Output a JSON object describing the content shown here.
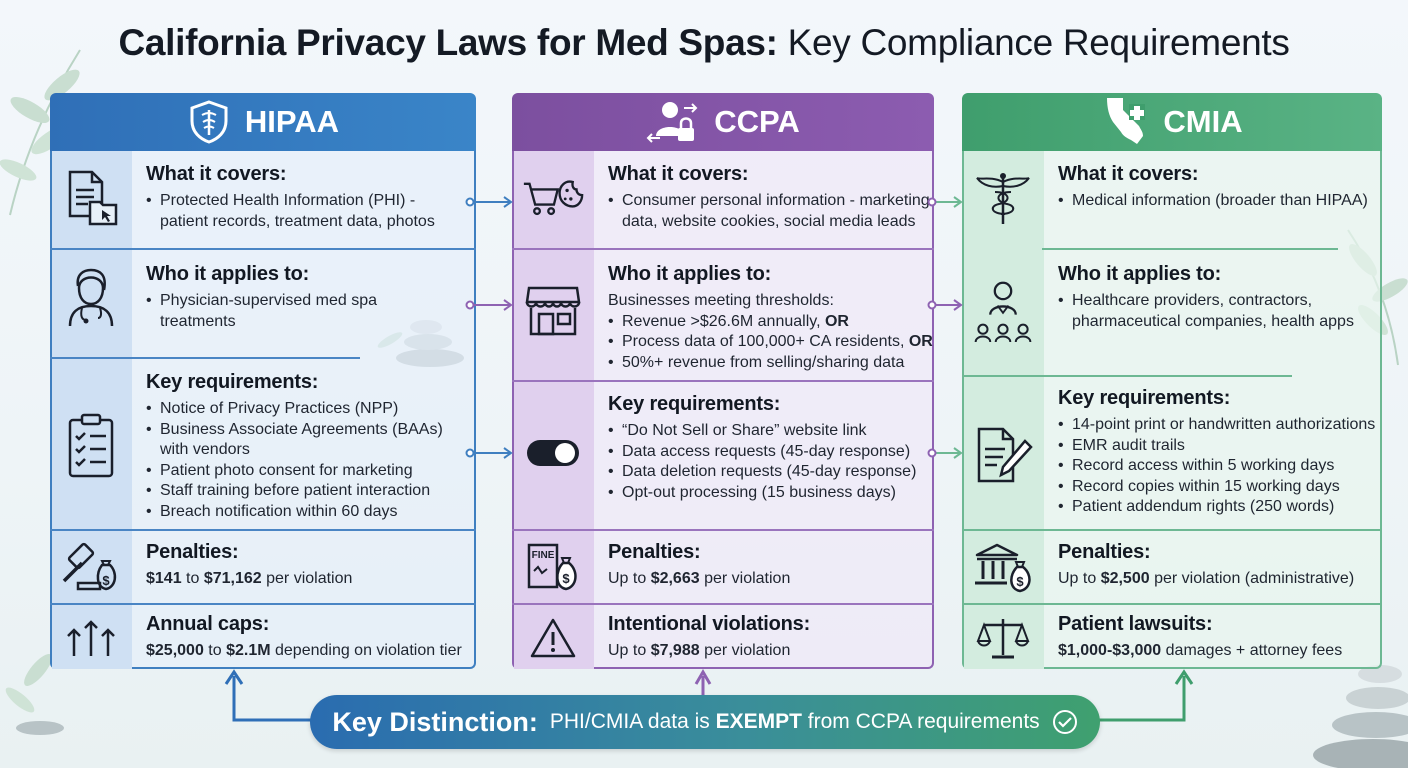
{
  "title": {
    "bold": "California Privacy Laws for Med Spas:",
    "light": "Key Compliance Requirements"
  },
  "columns": {
    "hipaa": {
      "name": "HIPAA",
      "sections": [
        {
          "icon": "document-folder-icon",
          "title": "What it covers:",
          "lines": [
            {
              "type": "bullet",
              "text": "Protected Health Information (PHI) -"
            },
            {
              "type": "cont",
              "text": "patient records, treatment data, photos"
            }
          ]
        },
        {
          "icon": "doctor-icon",
          "title": "Who it applies to:",
          "lines": [
            {
              "type": "bullet",
              "text": "Physician-supervised med spa"
            },
            {
              "type": "cont",
              "text": "treatments"
            }
          ]
        },
        {
          "icon": "checklist-icon",
          "title": "Key requirements:",
          "lines": [
            {
              "type": "bullet",
              "text": "Notice of Privacy Practices (NPP)"
            },
            {
              "type": "bullet",
              "text": "Business Associate Agreements (BAAs)"
            },
            {
              "type": "cont",
              "text": "with vendors"
            },
            {
              "type": "bullet",
              "text": "Patient photo consent for marketing"
            },
            {
              "type": "bullet",
              "text": "Staff training before patient interaction"
            },
            {
              "type": "bullet",
              "text": "Breach notification within 60 days"
            }
          ]
        },
        {
          "icon": "gavel-money-icon",
          "title": "Penalties:",
          "lines": [
            {
              "type": "plain",
              "bold": "$141",
              "mid": " to ",
              "bold2": "$71,162",
              "tail": " per violation"
            }
          ]
        },
        {
          "icon": "arrows-up-icon",
          "title": "Annual caps:",
          "lines": [
            {
              "type": "plain",
              "bold": "$25,000",
              "mid": " to ",
              "bold2": "$2.1M",
              "tail": " depending on violation tier"
            }
          ]
        }
      ]
    },
    "ccpa": {
      "name": "CCPA",
      "sections": [
        {
          "icon": "cart-cookie-icon",
          "title": "What it covers:",
          "lines": [
            {
              "type": "bullet",
              "text": "Consumer personal information - marketing"
            },
            {
              "type": "cont",
              "text": "data, website cookies, social media leads"
            }
          ]
        },
        {
          "icon": "storefront-icon",
          "title": "Who it applies to:",
          "lines": [
            {
              "type": "plain",
              "text": "Businesses meeting thresholds:"
            },
            {
              "type": "bullet",
              "text": "Revenue >$26.6M annually, ",
              "boldtail": "OR"
            },
            {
              "type": "bullet",
              "text": "Process data of 100,000+ CA residents, ",
              "boldtail": "OR"
            },
            {
              "type": "bullet",
              "text": "50%+ revenue from selling/sharing data"
            }
          ]
        },
        {
          "icon": "toggle-icon",
          "title": "Key requirements:",
          "lines": [
            {
              "type": "bullet",
              "text": "“Do Not Sell or Share” website link"
            },
            {
              "type": "bullet",
              "text": "Data access requests (45-day response)"
            },
            {
              "type": "bullet",
              "text": "Data deletion requests (45-day response)"
            },
            {
              "type": "bullet",
              "text": "Opt-out processing (15 business days)"
            }
          ]
        },
        {
          "icon": "fine-document-icon",
          "title": "Penalties:",
          "lines": [
            {
              "type": "plain",
              "pre": "Up to ",
              "bold": "$2,663",
              "tail": " per violation"
            }
          ]
        },
        {
          "icon": "warning-icon",
          "title": "Intentional violations:",
          "lines": [
            {
              "type": "plain",
              "pre": "Up to ",
              "bold": "$7,988",
              "tail": " per violation"
            }
          ]
        }
      ]
    },
    "cmia": {
      "name": "CMIA",
      "sections": [
        {
          "icon": "caduceus-icon",
          "title": "What it covers:",
          "lines": [
            {
              "type": "bullet",
              "text": "Medical information (broader than HIPAA)"
            }
          ]
        },
        {
          "icon": "provider-network-icon",
          "title": "Who it applies to:",
          "lines": [
            {
              "type": "bullet",
              "text": "Healthcare providers, contractors,"
            },
            {
              "type": "cont",
              "text": "pharmaceutical companies, health apps"
            }
          ]
        },
        {
          "icon": "document-pen-icon",
          "title": "Key requirements:",
          "lines": [
            {
              "type": "bullet",
              "text": "14-point print or handwritten authorizations"
            },
            {
              "type": "bullet",
              "text": "EMR audit trails"
            },
            {
              "type": "bullet",
              "text": "Record access within 5 working days"
            },
            {
              "type": "bullet",
              "text": "Record copies within 15 working days"
            },
            {
              "type": "bullet",
              "text": "Patient addendum rights (250 words)"
            }
          ]
        },
        {
          "icon": "bank-money-icon",
          "title": "Penalties:",
          "lines": [
            {
              "type": "plain",
              "pre": "Up to ",
              "bold": "$2,500",
              "tail": " per violation (administrative)"
            }
          ]
        },
        {
          "icon": "scales-icon",
          "title": "Patient lawsuits:",
          "lines": [
            {
              "type": "plain",
              "bold": "$1,000-$3,000",
              "tail": " damages + attorney fees"
            }
          ]
        }
      ]
    }
  },
  "banner": {
    "lead": "Key Distinction:",
    "pre": "PHI/CMIA data is ",
    "bold": "EXEMPT",
    "tail": " from CCPA requirements"
  },
  "colors": {
    "hipaa": "#2f6fb7",
    "ccpa": "#7c4f9f",
    "cmia": "#3f9e6d"
  }
}
